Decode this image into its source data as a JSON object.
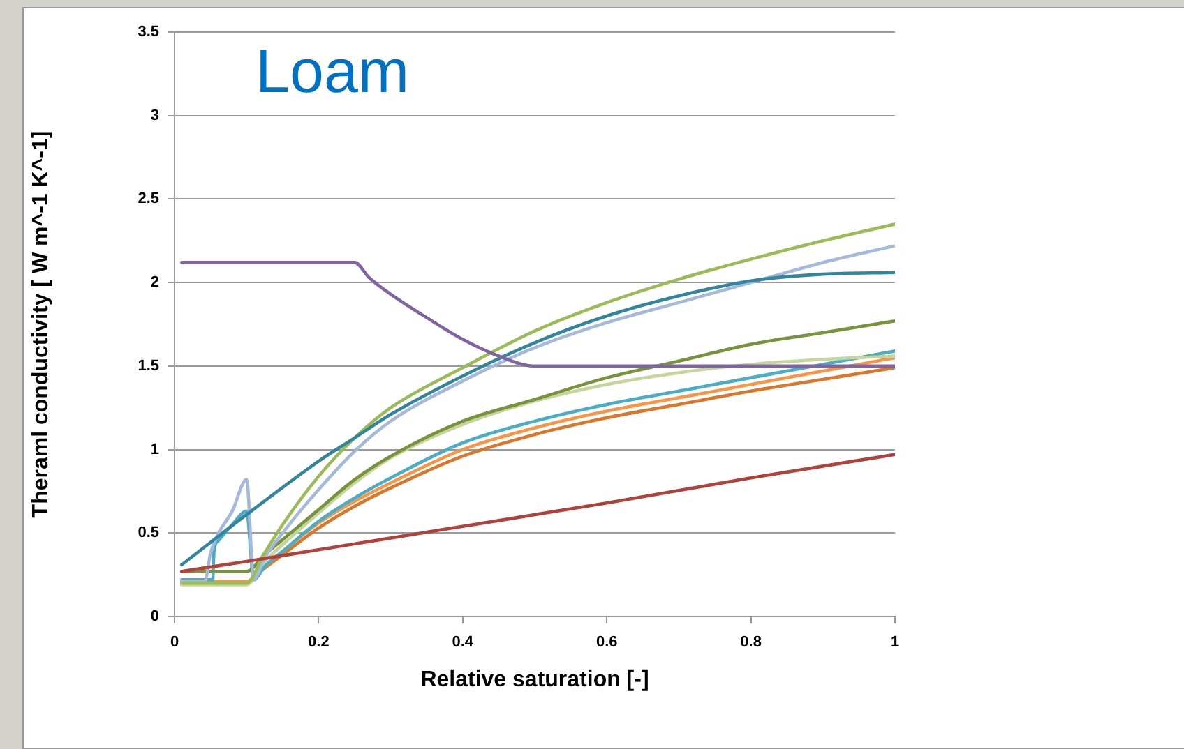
{
  "chart_data": {
    "type": "line",
    "title": "Loam",
    "xlabel": "Relative saturation [-]",
    "ylabel": "Theraml conductivity [ W m^-1 K^-1]",
    "xlim": [
      0,
      1
    ],
    "xticks": [
      0,
      0.2,
      0.4,
      0.6,
      0.8,
      1
    ],
    "ylim": [
      0,
      3.5
    ],
    "yticks": [
      0,
      0.5,
      1,
      1.5,
      2,
      2.5,
      3,
      3.5
    ],
    "grid": "y",
    "series": [
      {
        "color": "#8064a2",
        "x": [
          0.01,
          0.25,
          0.27,
          0.3,
          0.35,
          0.4,
          0.45,
          0.5,
          0.6,
          0.8,
          1
        ],
        "values": [
          2.12,
          2.12,
          2.03,
          1.93,
          1.79,
          1.66,
          1.56,
          1.5,
          1.5,
          1.5,
          1.5
        ]
      },
      {
        "color": "#b0423e",
        "x": [
          0.01,
          0.1,
          0.2,
          0.4,
          0.6,
          0.8,
          1
        ],
        "values": [
          0.27,
          0.33,
          0.4,
          0.54,
          0.68,
          0.83,
          0.97
        ]
      },
      {
        "color": "#31859c",
        "x": [
          0.01,
          0.1,
          0.2,
          0.25,
          0.3,
          0.4,
          0.5,
          0.6,
          0.7,
          0.8,
          0.9,
          1
        ],
        "values": [
          0.31,
          0.61,
          0.93,
          1.07,
          1.21,
          1.44,
          1.64,
          1.8,
          1.92,
          2.01,
          2.05,
          2.06
        ]
      },
      {
        "color": "#9bbb59",
        "x": [
          0.01,
          0.1,
          0.125,
          0.15,
          0.2,
          0.25,
          0.3,
          0.4,
          0.5,
          0.6,
          0.7,
          0.8,
          0.9,
          1
        ],
        "values": [
          0.2,
          0.2,
          0.38,
          0.55,
          0.84,
          1.07,
          1.25,
          1.49,
          1.71,
          1.88,
          2.02,
          2.14,
          2.25,
          2.35
        ]
      },
      {
        "color": "#a5b9db",
        "x": [
          0.01,
          0.042,
          0.05,
          0.06,
          0.08,
          0.1,
          0.11,
          0.125,
          0.15,
          0.2,
          0.25,
          0.3,
          0.4,
          0.5,
          0.6,
          0.7,
          0.8,
          0.9,
          1
        ],
        "values": [
          0.21,
          0.21,
          0.38,
          0.49,
          0.63,
          0.82,
          0.22,
          0.35,
          0.5,
          0.76,
          0.99,
          1.17,
          1.41,
          1.61,
          1.76,
          1.88,
          2.0,
          2.12,
          2.22
        ]
      },
      {
        "color": "#77933c",
        "x": [
          0.01,
          0.1,
          0.125,
          0.15,
          0.2,
          0.25,
          0.3,
          0.4,
          0.5,
          0.6,
          0.7,
          0.8,
          0.9,
          1
        ],
        "values": [
          0.27,
          0.27,
          0.37,
          0.46,
          0.64,
          0.82,
          0.96,
          1.17,
          1.3,
          1.43,
          1.53,
          1.63,
          1.7,
          1.77
        ]
      },
      {
        "color": "#c3d69b",
        "x": [
          0.01,
          0.1,
          0.125,
          0.15,
          0.2,
          0.25,
          0.3,
          0.4,
          0.5,
          0.6,
          0.7,
          0.8,
          0.9,
          1
        ],
        "values": [
          0.19,
          0.19,
          0.33,
          0.43,
          0.62,
          0.8,
          0.95,
          1.15,
          1.29,
          1.39,
          1.46,
          1.51,
          1.54,
          1.56
        ]
      },
      {
        "color": "#4bacc6",
        "x": [
          0.01,
          0.053,
          0.055,
          0.06,
          0.08,
          0.1,
          0.11,
          0.125,
          0.15,
          0.2,
          0.25,
          0.3,
          0.4,
          0.5,
          0.6,
          0.7,
          0.8,
          0.9,
          1
        ],
        "values": [
          0.22,
          0.22,
          0.4,
          0.45,
          0.55,
          0.63,
          0.22,
          0.3,
          0.39,
          0.57,
          0.71,
          0.83,
          1.04,
          1.17,
          1.27,
          1.35,
          1.43,
          1.51,
          1.59
        ]
      },
      {
        "color": "#f79646",
        "x": [
          0.01,
          0.1,
          0.125,
          0.15,
          0.2,
          0.25,
          0.3,
          0.4,
          0.5,
          0.6,
          0.7,
          0.8,
          0.9,
          1
        ],
        "values": [
          0.21,
          0.21,
          0.3,
          0.39,
          0.56,
          0.69,
          0.8,
          1.0,
          1.13,
          1.23,
          1.31,
          1.39,
          1.47,
          1.55
        ]
      },
      {
        "color": "#d9772c",
        "x": [
          0.01,
          0.1,
          0.125,
          0.15,
          0.2,
          0.25,
          0.3,
          0.4,
          0.5,
          0.6,
          0.7,
          0.8,
          0.9,
          1
        ],
        "values": [
          0.21,
          0.21,
          0.29,
          0.37,
          0.53,
          0.66,
          0.77,
          0.96,
          1.09,
          1.19,
          1.27,
          1.35,
          1.42,
          1.49
        ]
      }
    ]
  }
}
